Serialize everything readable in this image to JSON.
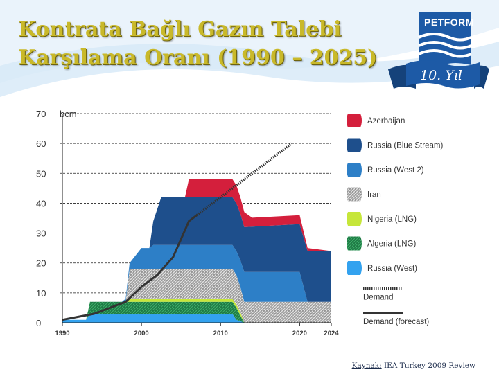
{
  "slide": {
    "title_line1": "Kontrata Bağlı Gazın Talebi",
    "title_line2": "Karşılama Oranı (1990 – 2025)",
    "source_label": "Kaynak:",
    "source_text": " IEA Turkey 2009 Review"
  },
  "logo": {
    "name": "PETFORM",
    "anniversary": "10. Yıl"
  },
  "colors": {
    "title": "#c9b92a",
    "azerbaijan": "#d41f3c",
    "blue_stream": "#1e4f8c",
    "west2": "#2d7fc7",
    "iran": "#a6a6a6",
    "nigeria_lng": "#c6e63a",
    "algeria_lng": "#1f7a45",
    "russia_west": "#33a2ef",
    "demand": "#333333"
  },
  "chart_data": {
    "type": "area",
    "stacking": "stacked",
    "unit_label": "bcm",
    "xlim": [
      1990,
      2024
    ],
    "ylim": [
      0,
      70
    ],
    "x_ticks": [
      "1990",
      "2000",
      "2010",
      "2020",
      "2024"
    ],
    "y_ticks": [
      "0",
      "10",
      "20",
      "30",
      "40",
      "50",
      "60",
      "70"
    ],
    "grid": "horizontal-dashed",
    "legend_position": "right",
    "series": [
      {
        "name": "Russia (West)",
        "color_key": "russia_west",
        "points": [
          [
            1990,
            1
          ],
          [
            1993,
            1
          ],
          [
            1993.5,
            3
          ],
          [
            2011.5,
            3
          ],
          [
            2012,
            1
          ],
          [
            2013,
            0
          ]
        ]
      },
      {
        "name": "Algeria (LNG)",
        "color_key": "algeria_lng",
        "points": [
          [
            1993,
            0
          ],
          [
            1993.5,
            4
          ],
          [
            2012,
            4
          ],
          [
            2012.5,
            2
          ],
          [
            2013,
            0
          ]
        ]
      },
      {
        "name": "Nigeria (LNG)",
        "color_key": "nigeria_lng",
        "points": [
          [
            1998,
            0
          ],
          [
            1998.5,
            1
          ],
          [
            2012,
            1
          ],
          [
            2012.5,
            1
          ],
          [
            2013,
            0
          ]
        ]
      },
      {
        "name": "Iran",
        "color_key": "iran",
        "points": [
          [
            1998,
            0
          ],
          [
            1998.5,
            10
          ],
          [
            2001,
            10
          ],
          [
            2001.5,
            10
          ],
          [
            2012,
            10
          ],
          [
            2013,
            7
          ],
          [
            2020,
            7
          ],
          [
            2021,
            7
          ],
          [
            2024,
            7
          ]
        ]
      },
      {
        "name": "Russia (West 2)",
        "color_key": "west2",
        "points": [
          [
            1997,
            0
          ],
          [
            1997.5,
            0
          ],
          [
            1998.5,
            2
          ],
          [
            2000,
            7
          ],
          [
            2001,
            7
          ],
          [
            2001.5,
            8
          ],
          [
            2012,
            8
          ],
          [
            2013,
            10
          ],
          [
            2020,
            10
          ],
          [
            2021,
            0
          ],
          [
            2024,
            0
          ]
        ]
      },
      {
        "name": "Russia (Blue Stream)",
        "color_key": "blue_stream",
        "points": [
          [
            2001,
            0
          ],
          [
            2001.5,
            8
          ],
          [
            2002.5,
            16
          ],
          [
            2012,
            16
          ],
          [
            2013,
            15
          ],
          [
            2020,
            16
          ],
          [
            2021,
            17
          ],
          [
            2024,
            17
          ]
        ]
      },
      {
        "name": "Azerbaijan",
        "color_key": "azerbaijan",
        "points": [
          [
            2005.5,
            0
          ],
          [
            2006,
            6
          ],
          [
            2012,
            6
          ],
          [
            2013,
            5
          ],
          [
            2014,
            3
          ],
          [
            2020,
            3
          ],
          [
            2021,
            1
          ],
          [
            2024,
            0
          ]
        ]
      }
    ],
    "demand": {
      "name": "Demand",
      "points": [
        [
          1990,
          1
        ],
        [
          1992,
          2
        ],
        [
          1994,
          3
        ],
        [
          1996,
          5
        ],
        [
          1998,
          7
        ],
        [
          2000,
          12
        ],
        [
          2001,
          14
        ],
        [
          2002,
          16
        ],
        [
          2003,
          19
        ],
        [
          2004,
          22
        ],
        [
          2005,
          28
        ],
        [
          2006,
          34
        ],
        [
          2007,
          36
        ]
      ]
    },
    "demand_forecast": {
      "name": "Demand (forecast)",
      "points": [
        [
          2007,
          36
        ],
        [
          2008,
          38
        ],
        [
          2009,
          40
        ],
        [
          2010,
          42
        ],
        [
          2011,
          44
        ],
        [
          2012,
          46
        ],
        [
          2013,
          48
        ],
        [
          2014,
          50
        ],
        [
          2015,
          52
        ],
        [
          2016,
          54
        ],
        [
          2017,
          56
        ],
        [
          2018,
          58
        ],
        [
          2019,
          60
        ]
      ]
    },
    "legend": [
      {
        "label": "Azerbaijan",
        "color_key": "azerbaijan",
        "kind": "swatch"
      },
      {
        "label": "Russia (Blue Stream)",
        "color_key": "blue_stream",
        "kind": "swatch"
      },
      {
        "label": "Russia (West 2)",
        "color_key": "west2",
        "kind": "swatch"
      },
      {
        "label": "Iran",
        "color_key": "iran",
        "kind": "hatch"
      },
      {
        "label": "Nigeria (LNG)",
        "color_key": "nigeria_lng",
        "kind": "swatch"
      },
      {
        "label": "Algeria (LNG)",
        "color_key": "algeria_lng",
        "kind": "hatch"
      },
      {
        "label": "Russia (West)",
        "color_key": "russia_west",
        "kind": "swatch"
      },
      {
        "label": "Demand",
        "color_key": "demand",
        "kind": "dotted-line"
      },
      {
        "label": "Demand (forecast)",
        "color_key": "demand",
        "kind": "solid-line"
      }
    ]
  }
}
